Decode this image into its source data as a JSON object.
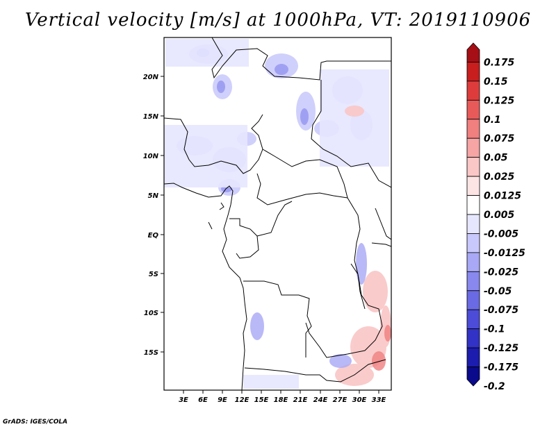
{
  "title": "Vertical velocity [m/s] at 1000hPa, VT: 2019110906",
  "credit": "GrADS: IGES/COLA",
  "map": {
    "lat_ticks": [
      "20N",
      "15N",
      "10N",
      "5N",
      "EQ",
      "5S",
      "10S",
      "15S"
    ],
    "lon_ticks": [
      "3E",
      "6E",
      "9E",
      "12E",
      "15E",
      "18E",
      "21E",
      "24E",
      "27E",
      "30E",
      "33E"
    ]
  },
  "colorbar": {
    "levels": [
      "0.175",
      "0.15",
      "0.125",
      "0.1",
      "0.075",
      "0.05",
      "0.025",
      "0.0125",
      "0.005",
      "-0.005",
      "-0.0125",
      "-0.025",
      "-0.05",
      "-0.075",
      "-0.1",
      "-0.125",
      "-0.175",
      "-0.2"
    ],
    "colors": [
      "#a50f15",
      "#c81e1e",
      "#de3c3c",
      "#e85a5a",
      "#f07f7f",
      "#f6a4a4",
      "#fac6c6",
      "#fde4e4",
      "#ffffff",
      "#e6e6ff",
      "#c8c8fc",
      "#a8a8f6",
      "#8888ee",
      "#6a6ae4",
      "#4c4cd8",
      "#3232c6",
      "#1c1cae",
      "#0a0a8c"
    ]
  }
}
